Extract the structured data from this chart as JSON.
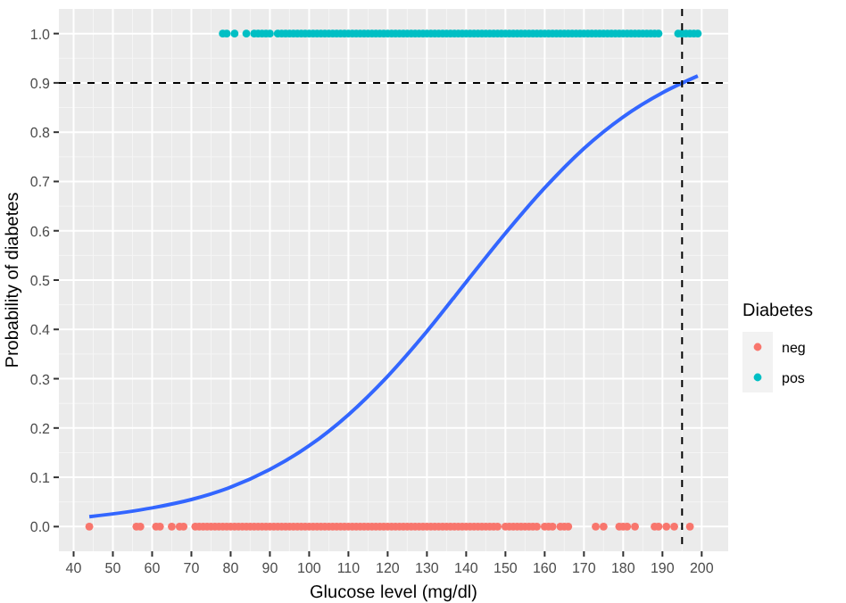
{
  "chart_data": {
    "type": "scatter",
    "xlabel": "Glucose level (mg/dl)",
    "ylabel": "Probability of diabetes",
    "legend_title": "Diabetes",
    "legend": "right",
    "grid": true,
    "xlim": [
      36.25,
      206.75
    ],
    "xticks": [
      40,
      50,
      60,
      70,
      80,
      90,
      100,
      110,
      120,
      130,
      140,
      150,
      160,
      170,
      180,
      190,
      200
    ],
    "ylim": [
      -0.05,
      1.05
    ],
    "yticks": [
      {
        "value": 0,
        "label": "0.0"
      },
      0.1,
      0.2,
      0.3,
      0.4,
      0.5,
      0.6,
      0.7,
      0.8,
      0.9,
      {
        "value": 1,
        "label": "1.0"
      }
    ],
    "ref_lines": [
      {
        "axis": "y",
        "value": 0.9,
        "color": "#000000",
        "line_style": "dashed"
      },
      {
        "axis": "x",
        "value": 195,
        "color": "#000000",
        "line_style": "dashed"
      }
    ],
    "series": [
      {
        "name": "neg",
        "marker": "circle",
        "color": "#f8766d",
        "x": [
          44,
          56,
          57,
          61,
          62,
          65,
          67,
          68,
          71,
          72,
          73,
          74,
          75,
          76,
          77,
          78,
          79,
          80,
          81,
          82,
          83,
          84,
          85,
          86,
          87,
          88,
          89,
          90,
          91,
          92,
          93,
          94,
          95,
          96,
          97,
          98,
          99,
          100,
          101,
          102,
          103,
          104,
          105,
          106,
          107,
          108,
          109,
          110,
          111,
          112,
          113,
          114,
          115,
          116,
          117,
          118,
          119,
          120,
          121,
          122,
          123,
          124,
          125,
          126,
          127,
          128,
          129,
          130,
          131,
          132,
          133,
          134,
          135,
          136,
          137,
          138,
          139,
          140,
          141,
          142,
          143,
          144,
          145,
          146,
          147,
          148,
          150,
          151,
          152,
          153,
          154,
          155,
          156,
          157,
          158,
          160,
          161,
          162,
          164,
          165,
          166,
          173,
          175,
          179,
          180,
          181,
          183,
          188,
          189,
          191,
          193,
          197
        ],
        "values": [
          0,
          0,
          0,
          0,
          0,
          0,
          0,
          0,
          0,
          0,
          0,
          0,
          0,
          0,
          0,
          0,
          0,
          0,
          0,
          0,
          0,
          0,
          0,
          0,
          0,
          0,
          0,
          0,
          0,
          0,
          0,
          0,
          0,
          0,
          0,
          0,
          0,
          0,
          0,
          0,
          0,
          0,
          0,
          0,
          0,
          0,
          0,
          0,
          0,
          0,
          0,
          0,
          0,
          0,
          0,
          0,
          0,
          0,
          0,
          0,
          0,
          0,
          0,
          0,
          0,
          0,
          0,
          0,
          0,
          0,
          0,
          0,
          0,
          0,
          0,
          0,
          0,
          0,
          0,
          0,
          0,
          0,
          0,
          0,
          0,
          0,
          0,
          0,
          0,
          0,
          0,
          0,
          0,
          0,
          0,
          0,
          0,
          0,
          0,
          0,
          0,
          0,
          0,
          0,
          0,
          0,
          0,
          0,
          0,
          0,
          0,
          0
        ]
      },
      {
        "name": "pos",
        "marker": "circle",
        "color": "#00bfc4",
        "x": [
          78,
          79,
          81,
          84,
          86,
          87,
          88,
          89,
          90,
          92,
          93,
          94,
          95,
          96,
          97,
          98,
          99,
          100,
          101,
          102,
          103,
          104,
          105,
          106,
          107,
          108,
          109,
          110,
          111,
          112,
          113,
          114,
          115,
          116,
          117,
          118,
          119,
          120,
          121,
          122,
          123,
          124,
          125,
          126,
          127,
          128,
          129,
          130,
          131,
          132,
          133,
          134,
          135,
          136,
          137,
          138,
          139,
          140,
          141,
          142,
          143,
          144,
          145,
          146,
          147,
          148,
          149,
          150,
          151,
          152,
          153,
          154,
          155,
          156,
          157,
          158,
          159,
          160,
          161,
          162,
          163,
          164,
          165,
          166,
          167,
          168,
          169,
          170,
          171,
          172,
          173,
          174,
          175,
          176,
          177,
          178,
          179,
          180,
          181,
          182,
          183,
          184,
          185,
          186,
          187,
          188,
          189,
          194,
          195,
          196,
          197,
          198,
          199
        ],
        "values": [
          1,
          1,
          1,
          1,
          1,
          1,
          1,
          1,
          1,
          1,
          1,
          1,
          1,
          1,
          1,
          1,
          1,
          1,
          1,
          1,
          1,
          1,
          1,
          1,
          1,
          1,
          1,
          1,
          1,
          1,
          1,
          1,
          1,
          1,
          1,
          1,
          1,
          1,
          1,
          1,
          1,
          1,
          1,
          1,
          1,
          1,
          1,
          1,
          1,
          1,
          1,
          1,
          1,
          1,
          1,
          1,
          1,
          1,
          1,
          1,
          1,
          1,
          1,
          1,
          1,
          1,
          1,
          1,
          1,
          1,
          1,
          1,
          1,
          1,
          1,
          1,
          1,
          1,
          1,
          1,
          1,
          1,
          1,
          1,
          1,
          1,
          1,
          1,
          1,
          1,
          1,
          1,
          1,
          1,
          1,
          1,
          1,
          1,
          1,
          1,
          1,
          1,
          1,
          1,
          1,
          1,
          1,
          1,
          1,
          1,
          1,
          1,
          1
        ]
      },
      {
        "type": "line",
        "marker": "none",
        "color": "#3366ff",
        "x": [
          44,
          60,
          70,
          80,
          90,
          100,
          110,
          120,
          130,
          140,
          150,
          160,
          170,
          180,
          190,
          199
        ],
        "values": [
          0.02,
          0.038,
          0.055,
          0.08,
          0.116,
          0.164,
          0.227,
          0.305,
          0.396,
          0.496,
          0.595,
          0.687,
          0.767,
          0.831,
          0.88,
          0.914
        ]
      }
    ]
  }
}
